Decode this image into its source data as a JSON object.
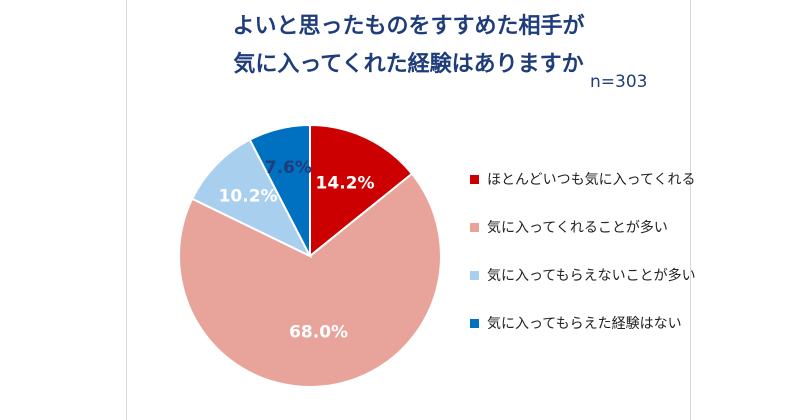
{
  "title_lines": [
    "よいと思ったものをすすめた相手が",
    "気に入ってくれた経験はありますか"
  ],
  "sample_size": "n=303",
  "chart_data": {
    "type": "pie",
    "title": "よいと思ったものをすすめた相手が気に入ってくれた経験はありますか",
    "categories": [
      "ほとんどいつも気に入ってくれる",
      "気に入ってくれることが多い",
      "気に入ってもらえないことが多い",
      "気に入ってもらえた経験はない"
    ],
    "values": [
      14.2,
      68.0,
      10.2,
      7.6
    ],
    "labels": [
      "14.2%",
      "68.0%",
      "10.2%",
      "7.6%"
    ],
    "colors": [
      "#cc0000",
      "#e8a49b",
      "#a8d0ee",
      "#0070c0"
    ],
    "label_colors": [
      "#ffffff",
      "#ffffff",
      "#ffffff",
      "#1f3d7a"
    ],
    "legend_position": "right"
  }
}
